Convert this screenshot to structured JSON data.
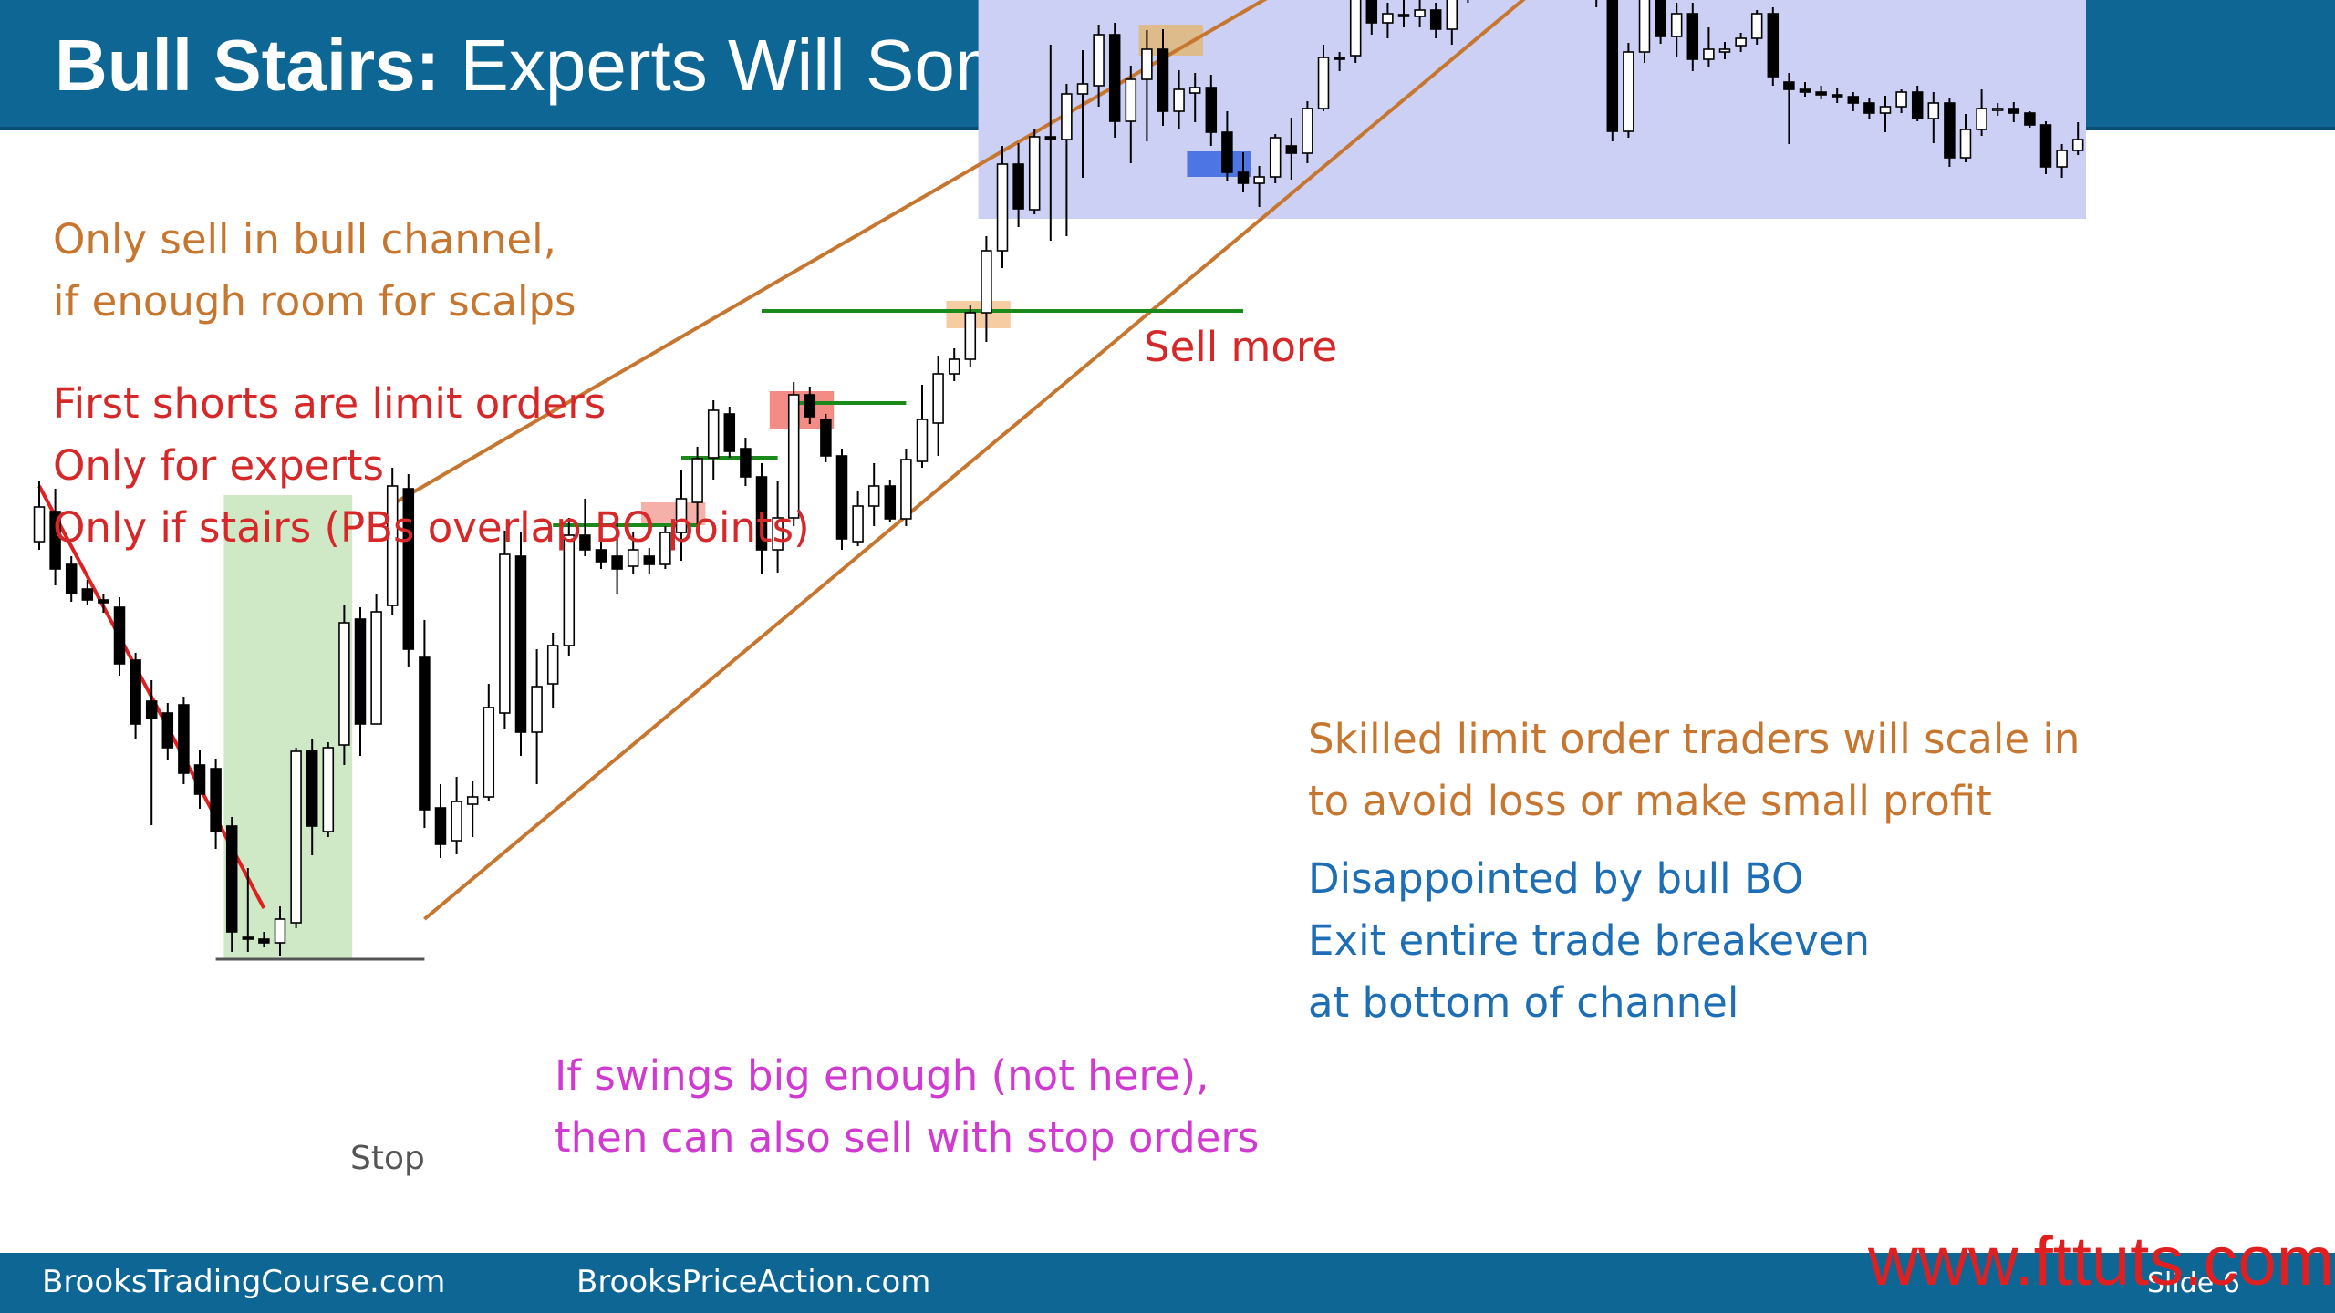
{
  "header": {
    "title_bold": "Bull Stairs:",
    "title_rest": "Experts Will Sometimes Also Short"
  },
  "notes": {
    "sell_line1": "Only sell in bull channel,",
    "sell_line2": "if enough room for scalps",
    "first_shorts": "First shorts are limit orders",
    "experts": "Only for experts",
    "stairs": "Only if stairs (PBs overlap BO points)",
    "sell_more": "Sell more",
    "skilled_line1": "Skilled limit order traders will scale in",
    "skilled_line2": "to avoid loss or make small profit",
    "disappointed": "Disappointed by bull BO",
    "exit": "Exit entire trade breakeven",
    "bottom": "at bottom of channel",
    "swings_line1": "If swings big enough (not here),",
    "swings_line2": "then can also sell with stop orders",
    "stop": "Stop"
  },
  "footer": {
    "left": "BrooksTradingCourse.com",
    "center": "BrooksPriceAction.com",
    "slide": "Slide 6",
    "watermark": "www.fttuts.com"
  },
  "colors": {
    "header": "#0e6694",
    "bull_candle": "#ffffff",
    "bear_candle": "#000000",
    "channel": "#c7762f",
    "trendline": "#e02020",
    "stairs_level": "#1a8a1a",
    "sell_zone": "#ccd0f5",
    "entry_zone": "#cfe8c6"
  },
  "chart_data": {
    "type": "candlestick",
    "title": "",
    "xlabel": "",
    "ylabel": "",
    "x": [
      1,
      2,
      3,
      4,
      5,
      6,
      7,
      8,
      9,
      10,
      11,
      12,
      13,
      14,
      15,
      16,
      17,
      18,
      19,
      20,
      21,
      22,
      23,
      24,
      25,
      26,
      27,
      28,
      29,
      30,
      31,
      32,
      33,
      34,
      35,
      36,
      37,
      38,
      39,
      40,
      41,
      42,
      43,
      44,
      45,
      46,
      47,
      48,
      49,
      50,
      51,
      52,
      53,
      54,
      55,
      56,
      57,
      58,
      59,
      60,
      61,
      62,
      63,
      64,
      65,
      66,
      67,
      68,
      69,
      70,
      71,
      72,
      73,
      74,
      75,
      76,
      77,
      78,
      79,
      80,
      81,
      82,
      83,
      84,
      85,
      86,
      87,
      88,
      89,
      90,
      91,
      92,
      93,
      94,
      95,
      96,
      97,
      98,
      99,
      100,
      101,
      102,
      103,
      104,
      105,
      106,
      107,
      108,
      109,
      110,
      111,
      112,
      113,
      114,
      115,
      116,
      117,
      118,
      119,
      120,
      121,
      122,
      123,
      124,
      125,
      126,
      127,
      128
    ],
    "ohlc": [
      [
        63.2,
        69.9,
        62.3,
        67.0
      ],
      [
        66.5,
        69.0,
        58.4,
        60.2
      ],
      [
        60.7,
        61.6,
        56.6,
        57.5
      ],
      [
        58.0,
        59.0,
        56.3,
        56.8
      ],
      [
        56.8,
        57.5,
        55.4,
        56.5
      ],
      [
        56.0,
        57.1,
        48.5,
        49.8
      ],
      [
        50.2,
        51.0,
        41.6,
        43.2
      ],
      [
        45.7,
        48.0,
        32.1,
        43.8
      ],
      [
        44.4,
        45.5,
        39.3,
        40.6
      ],
      [
        45.3,
        46.2,
        36.6,
        37.8
      ],
      [
        38.7,
        40.3,
        33.9,
        35.5
      ],
      [
        38.3,
        39.4,
        29.5,
        31.4
      ],
      [
        32.0,
        33.0,
        18.2,
        20.4
      ],
      [
        19.8,
        27.4,
        18.2,
        19.6
      ],
      [
        19.6,
        20.4,
        18.7,
        19.2
      ],
      [
        19.2,
        23.2,
        17.7,
        21.8
      ],
      [
        21.4,
        40.6,
        20.8,
        40.2
      ],
      [
        40.3,
        41.5,
        28.8,
        32.0
      ],
      [
        31.4,
        41.2,
        30.8,
        40.6
      ],
      [
        40.9,
        56.3,
        38.7,
        54.3
      ],
      [
        54.7,
        56.0,
        39.7,
        43.2
      ],
      [
        43.2,
        57.5,
        43.2,
        55.5
      ],
      [
        56.2,
        71.3,
        55.2,
        69.3
      ],
      [
        69.0,
        70.6,
        49.4,
        51.4
      ],
      [
        50.5,
        54.6,
        31.8,
        33.8
      ],
      [
        34.0,
        36.6,
        28.5,
        30.0
      ],
      [
        30.4,
        37.4,
        28.9,
        34.7
      ],
      [
        34.4,
        36.9,
        30.8,
        35.2
      ],
      [
        35.2,
        47.6,
        34.7,
        45.0
      ],
      [
        44.4,
        64.4,
        42.6,
        61.8
      ],
      [
        61.6,
        64.2,
        39.7,
        42.3
      ],
      [
        42.3,
        51.4,
        36.6,
        47.3
      ],
      [
        47.6,
        53.2,
        44.9,
        51.8
      ],
      [
        51.8,
        65.8,
        50.6,
        63.9
      ],
      [
        63.9,
        67.9,
        61.6,
        62.3
      ],
      [
        62.3,
        65.7,
        60.2,
        61.0
      ],
      [
        61.6,
        65.7,
        57.5,
        60.2
      ],
      [
        60.5,
        64.2,
        59.7,
        62.3
      ],
      [
        61.6,
        62.5,
        59.7,
        60.7
      ],
      [
        60.7,
        64.9,
        60.2,
        64.2
      ],
      [
        64.2,
        71.1,
        61.1,
        67.9
      ],
      [
        67.5,
        73.6,
        65.1,
        72.3
      ],
      [
        72.4,
        78.7,
        70.0,
        77.6
      ],
      [
        77.2,
        78.0,
        72.4,
        73.1
      ],
      [
        73.4,
        74.6,
        69.3,
        70.3
      ],
      [
        70.3,
        71.8,
        59.7,
        62.3
      ],
      [
        62.3,
        69.9,
        59.8,
        65.8
      ],
      [
        65.8,
        80.7,
        64.9,
        79.3
      ],
      [
        79.3,
        80.2,
        76.1,
        76.9
      ],
      [
        76.6,
        77.2,
        71.9,
        72.6
      ],
      [
        72.6,
        73.4,
        62.3,
        63.5
      ],
      [
        63.2,
        68.8,
        62.7,
        67.1
      ],
      [
        67.1,
        71.8,
        64.9,
        69.3
      ],
      [
        69.3,
        70.0,
        65.3,
        65.7
      ],
      [
        65.7,
        73.4,
        64.9,
        72.2
      ],
      [
        72.0,
        80.4,
        71.3,
        76.6
      ],
      [
        76.2,
        83.6,
        72.6,
        81.6
      ],
      [
        81.6,
        84.4,
        80.8,
        83.2
      ],
      [
        83.2,
        89.1,
        82.3,
        88.3
      ],
      [
        88.3,
        96.7,
        85.1,
        95.1
      ],
      [
        95.1,
        106.6,
        93.2,
        104.6
      ],
      [
        104.6,
        106.9,
        97.7,
        99.7
      ],
      [
        99.6,
        108.4,
        99.1,
        107.6
      ],
      [
        107.6,
        117.7,
        96.2,
        107.3
      ],
      [
        107.3,
        113.4,
        96.7,
        112.3
      ],
      [
        112.3,
        117.1,
        103.1,
        113.4
      ],
      [
        113.2,
        119.9,
        110.9,
        118.8
      ],
      [
        118.8,
        120.1,
        107.5,
        109.3
      ],
      [
        109.3,
        115.4,
        104.7,
        113.9
      ],
      [
        113.9,
        119.3,
        107.1,
        117.2
      ],
      [
        117.2,
        119.4,
        108.8,
        110.4
      ],
      [
        110.4,
        114.9,
        108.4,
        112.8
      ],
      [
        112.4,
        114.6,
        109.2,
        113.0
      ],
      [
        113.0,
        114.4,
        106.6,
        108.1
      ],
      [
        108.1,
        110.4,
        102.7,
        103.7
      ],
      [
        103.7,
        105.9,
        101.5,
        102.5
      ],
      [
        102.5,
        104.4,
        99.9,
        103.2
      ],
      [
        103.2,
        107.9,
        102.5,
        107.5
      ],
      [
        106.6,
        109.7,
        102.9,
        105.8
      ],
      [
        105.8,
        111.5,
        104.7,
        110.7
      ],
      [
        110.7,
        117.7,
        110.4,
        116.3
      ],
      [
        116.3,
        116.9,
        114.8,
        116.1
      ],
      [
        116.5,
        127.0,
        115.7,
        126.0
      ],
      [
        126.0,
        127.0,
        118.8,
        120.1
      ],
      [
        120.1,
        122.3,
        118.4,
        121.1
      ],
      [
        121.0,
        122.6,
        119.6,
        120.8
      ],
      [
        120.8,
        124.0,
        119.6,
        121.5
      ],
      [
        121.5,
        122.3,
        118.4,
        119.4
      ],
      [
        119.4,
        124.0,
        117.7,
        123.7
      ],
      [
        123.6,
        133.2,
        122.3,
        131.7
      ],
      [
        131.7,
        137.6,
        129.8,
        134.3
      ],
      [
        134.0,
        135.3,
        130.5,
        132.7
      ],
      [
        132.6,
        133.6,
        128.3,
        129.1
      ],
      [
        129.1,
        131.7,
        127.9,
        130.7
      ],
      [
        130.5,
        131.7,
        128.6,
        130.3
      ],
      [
        130.3,
        131.4,
        127.0,
        127.7
      ],
      [
        124.0,
        125.9,
        122.6,
        124.8
      ],
      [
        124.5,
        125.9,
        121.8,
        124.9
      ],
      [
        124.9,
        125.3,
        107.1,
        108.2
      ],
      [
        108.2,
        117.9,
        107.5,
        116.9
      ],
      [
        116.9,
        124.3,
        115.7,
        123.6
      ],
      [
        123.6,
        124.3,
        117.8,
        118.6
      ],
      [
        118.6,
        122.3,
        116.3,
        121.1
      ],
      [
        121.1,
        122.3,
        114.8,
        116.1
      ],
      [
        116.1,
        119.6,
        115.3,
        117.2
      ],
      [
        116.9,
        118.0,
        116.1,
        117.2
      ],
      [
        117.6,
        119.0,
        116.9,
        118.4
      ],
      [
        118.4,
        121.5,
        117.7,
        121.1
      ],
      [
        121.1,
        121.8,
        113.2,
        114.2
      ],
      [
        113.6,
        114.6,
        106.8,
        112.8
      ],
      [
        112.8,
        113.6,
        112.0,
        112.5
      ],
      [
        112.5,
        113.2,
        111.7,
        112.2
      ],
      [
        112.2,
        112.9,
        111.3,
        112.0
      ],
      [
        112.0,
        112.5,
        110.4,
        111.3
      ],
      [
        111.3,
        111.8,
        109.6,
        110.2
      ],
      [
        110.2,
        112.1,
        108.1,
        110.9
      ],
      [
        110.9,
        112.8,
        110.2,
        112.5
      ],
      [
        112.5,
        113.2,
        109.3,
        109.6
      ],
      [
        109.6,
        112.5,
        106.9,
        111.3
      ],
      [
        111.3,
        111.8,
        104.3,
        105.3
      ],
      [
        105.3,
        110.1,
        104.8,
        108.4
      ],
      [
        108.4,
        112.8,
        107.7,
        110.7
      ],
      [
        110.7,
        111.3,
        109.9,
        110.7
      ],
      [
        110.7,
        111.4,
        109.2,
        110.2
      ],
      [
        110.2,
        110.4,
        108.6,
        108.9
      ],
      [
        108.9,
        109.3,
        103.5,
        104.3
      ],
      [
        104.3,
        106.8,
        103.1,
        106.1
      ],
      [
        106.1,
        109.2,
        105.6,
        107.3
      ]
    ],
    "annotations": {
      "trendline": [
        [
          1,
          69.3
        ],
        [
          15,
          23.0
        ]
      ],
      "channel_upper": [
        [
          23,
          67.3
        ],
        [
          92,
          137.6
        ]
      ],
      "channel_lower": [
        [
          25,
          21.8
        ],
        [
          96,
          126.4
        ]
      ],
      "stop_level": [
        [
          12,
          17.4
        ],
        [
          25,
          17.4
        ]
      ],
      "stairs_levels": [
        {
          "x": [
            33,
            42
          ],
          "y": 65.0
        },
        {
          "x": [
            41,
            47
          ],
          "y": 72.4
        },
        {
          "x": [
            48,
            55
          ],
          "y": 78.4
        },
        {
          "x": [
            46,
            76
          ],
          "y": 88.5
        }
      ],
      "entry_zone": {
        "x": [
          13,
          20
        ],
        "y": [
          17.4,
          68.3
        ]
      },
      "sell_zone": {
        "x": [
          60,
          128
        ],
        "y": [
          98.6,
          137.9
        ]
      },
      "short_boxes": [
        {
          "x": [
            39,
            42
          ],
          "y": [
            65.0,
            67.5
          ],
          "color": "#f4a9a0"
        },
        {
          "x": [
            47,
            50
          ],
          "y": [
            75.6,
            79.7
          ],
          "color": "#f28077"
        },
        {
          "x": [
            58,
            61
          ],
          "y": [
            86.6,
            89.6
          ],
          "color": "#f5c898"
        },
        {
          "x": [
            70,
            73
          ],
          "y": [
            116.5,
            119.9
          ],
          "color": "#e0b880"
        },
        {
          "x": [
            73,
            76
          ],
          "y": [
            103.2,
            106.0
          ],
          "color": "#3f6be0"
        }
      ]
    }
  }
}
